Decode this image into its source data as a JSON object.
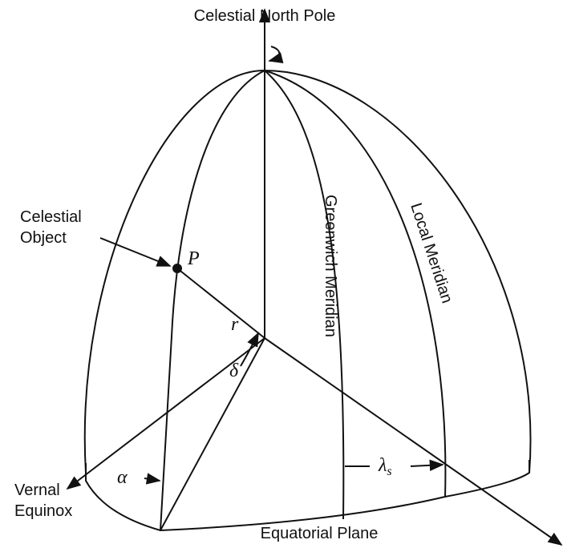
{
  "title": "Celestial North Pole",
  "labels": {
    "object": [
      "Celestial",
      "Object"
    ],
    "point": "P",
    "radius": "r",
    "declination": "δ",
    "greenwich": "Greenwich Meridian",
    "local": "Local Meridian",
    "right_ascension": "α",
    "longitude": {
      "symbol": "λ",
      "subscript": "s"
    },
    "vernal": [
      "Vernal",
      "Equinox"
    ],
    "plane": "Equatorial Plane"
  }
}
